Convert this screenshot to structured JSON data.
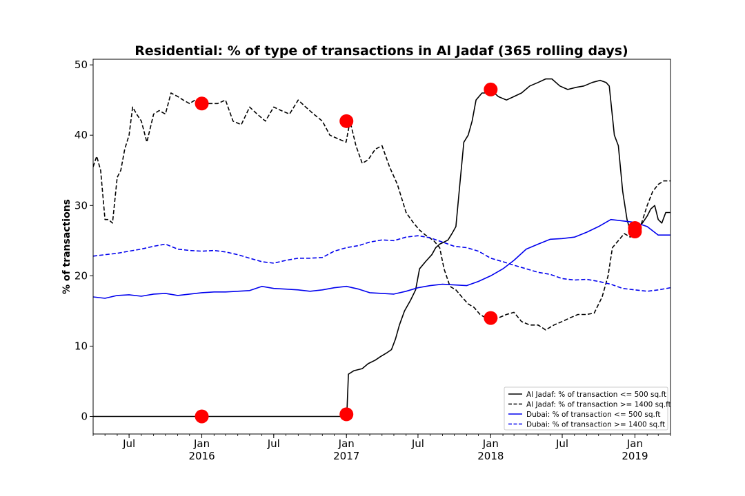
{
  "chart_data": {
    "type": "line",
    "title": "Residential: % of type of transactions in Al Jadaf (365 rolling days)",
    "xlabel": "",
    "ylabel": "% of transactions",
    "xlim": [
      "2015-04-01",
      "2019-04-01"
    ],
    "ylim": [
      -2.5,
      50.8
    ],
    "yticks": [
      0,
      10,
      20,
      30,
      40,
      50
    ],
    "xticks": [
      {
        "date": "2015-07-01",
        "label": "Jul",
        "year": ""
      },
      {
        "date": "2016-01-01",
        "label": "Jan",
        "year": "2016"
      },
      {
        "date": "2016-07-01",
        "label": "Jul",
        "year": ""
      },
      {
        "date": "2017-01-01",
        "label": "Jan",
        "year": "2017"
      },
      {
        "date": "2017-07-01",
        "label": "Jul",
        "year": ""
      },
      {
        "date": "2018-01-01",
        "label": "Jan",
        "year": "2018"
      },
      {
        "date": "2018-07-01",
        "label": "Jul",
        "year": ""
      },
      {
        "date": "2019-01-01",
        "label": "Jan",
        "year": "2019"
      }
    ],
    "grid": false,
    "legend_position": "lower-right",
    "series": [
      {
        "name": "Al Jadaf: % of transaction <= 500 sq.ft",
        "color": "#000000",
        "dash": "solid",
        "x": [
          "2015-04-01",
          "2016-01-01",
          "2016-07-01",
          "2016-12-31",
          "2017-01-02",
          "2017-01-06",
          "2017-01-20",
          "2017-02-10",
          "2017-02-25",
          "2017-03-15",
          "2017-03-28",
          "2017-04-12",
          "2017-04-25",
          "2017-05-05",
          "2017-05-15",
          "2017-05-28",
          "2017-06-12",
          "2017-06-25",
          "2017-07-05",
          "2017-07-20",
          "2017-08-05",
          "2017-08-15",
          "2017-08-25",
          "2017-09-05",
          "2017-09-15",
          "2017-09-25",
          "2017-10-05",
          "2017-10-15",
          "2017-10-25",
          "2017-11-05",
          "2017-11-15",
          "2017-11-25",
          "2017-12-10",
          "2017-12-20",
          "2018-01-01",
          "2018-01-20",
          "2018-02-10",
          "2018-03-01",
          "2018-03-20",
          "2018-04-10",
          "2018-05-01",
          "2018-05-20",
          "2018-06-05",
          "2018-06-25",
          "2018-07-15",
          "2018-08-05",
          "2018-08-25",
          "2018-09-15",
          "2018-10-05",
          "2018-10-20",
          "2018-10-28",
          "2018-11-10",
          "2018-11-20",
          "2018-12-01",
          "2018-12-12",
          "2018-12-22",
          "2019-01-01",
          "2019-01-10",
          "2019-01-20",
          "2019-02-01",
          "2019-02-10",
          "2019-02-20",
          "2019-03-01",
          "2019-03-10",
          "2019-03-20",
          "2019-04-01"
        ],
        "values": [
          0,
          0,
          0,
          0,
          0.3,
          6,
          6.5,
          6.8,
          7.5,
          8,
          8.5,
          9,
          9.5,
          11,
          13,
          15,
          16.5,
          18,
          21,
          22,
          23,
          24,
          24.5,
          24.8,
          25.1,
          26,
          27,
          33,
          39,
          40,
          42,
          45,
          46,
          46,
          46.5,
          45.5,
          45,
          45.5,
          46,
          47,
          47.5,
          48,
          48,
          47,
          46.5,
          46.8,
          47,
          47.5,
          47.8,
          47.5,
          47,
          40,
          38.5,
          32,
          28,
          26,
          25.5,
          27,
          27.5,
          28.5,
          29.5,
          30,
          28,
          27.5,
          29,
          29
        ]
      },
      {
        "name": "Al Jadaf: % of transaction >= 1400 sq.ft",
        "color": "#000000",
        "dash": "dashed",
        "x": [
          "2015-04-01",
          "2015-04-10",
          "2015-04-20",
          "2015-05-01",
          "2015-05-10",
          "2015-05-20",
          "2015-06-01",
          "2015-06-10",
          "2015-06-20",
          "2015-07-01",
          "2015-07-10",
          "2015-07-20",
          "2015-08-01",
          "2015-08-15",
          "2015-09-01",
          "2015-09-15",
          "2015-10-01",
          "2015-10-15",
          "2015-11-01",
          "2015-11-15",
          "2015-12-01",
          "2015-12-15",
          "2016-01-01",
          "2016-01-20",
          "2016-02-10",
          "2016-03-01",
          "2016-03-20",
          "2016-04-10",
          "2016-05-01",
          "2016-05-20",
          "2016-06-10",
          "2016-07-01",
          "2016-07-20",
          "2016-08-10",
          "2016-09-01",
          "2016-09-20",
          "2016-10-10",
          "2016-11-01",
          "2016-11-20",
          "2016-12-10",
          "2016-12-31",
          "2017-01-10",
          "2017-01-25",
          "2017-02-10",
          "2017-02-25",
          "2017-03-15",
          "2017-04-01",
          "2017-04-20",
          "2017-05-10",
          "2017-06-01",
          "2017-06-20",
          "2017-07-05",
          "2017-07-20",
          "2017-08-10",
          "2017-08-25",
          "2017-09-05",
          "2017-09-20",
          "2017-10-05",
          "2017-10-20",
          "2017-11-05",
          "2017-11-20",
          "2017-12-05",
          "2017-12-20",
          "2018-01-01",
          "2018-01-20",
          "2018-02-10",
          "2018-03-01",
          "2018-03-20",
          "2018-04-10",
          "2018-05-01",
          "2018-05-20",
          "2018-06-10",
          "2018-07-01",
          "2018-07-20",
          "2018-08-10",
          "2018-09-01",
          "2018-09-20",
          "2018-10-10",
          "2018-10-25",
          "2018-11-05",
          "2018-11-20",
          "2018-12-05",
          "2018-12-20",
          "2019-01-01",
          "2019-01-15",
          "2019-02-01",
          "2019-02-15",
          "2019-03-01",
          "2019-03-15",
          "2019-04-01"
        ],
        "values": [
          35.5,
          37,
          35,
          28,
          28,
          27.5,
          34,
          35,
          38,
          40,
          44,
          43,
          42,
          39,
          43,
          43.5,
          43,
          46,
          45.5,
          45,
          44.5,
          45,
          44.5,
          44.5,
          44.5,
          45,
          42,
          41.5,
          44,
          43,
          42,
          44,
          43.5,
          43,
          45,
          44,
          43,
          42,
          40,
          39.5,
          39,
          42,
          38.5,
          36,
          36.5,
          38,
          38.5,
          35.5,
          33,
          29,
          27.5,
          26.5,
          25.8,
          25,
          24,
          21,
          18.5,
          18,
          17,
          16,
          15.5,
          14.5,
          14,
          13.8,
          14,
          14.5,
          14.8,
          13.5,
          13,
          13,
          12.3,
          13,
          13.5,
          14,
          14.5,
          14.5,
          14.7,
          17,
          20,
          24,
          25,
          26,
          25.5,
          26.5,
          27,
          30,
          32,
          33,
          33.5,
          33.5
        ]
      },
      {
        "name": "Dubai: % of transaction <= 500 sq.ft",
        "color": "#0000ee",
        "dash": "solid",
        "x": [
          "2015-04-01",
          "2015-05-01",
          "2015-06-01",
          "2015-07-01",
          "2015-08-01",
          "2015-09-01",
          "2015-10-01",
          "2015-11-01",
          "2015-12-01",
          "2016-01-01",
          "2016-02-01",
          "2016-03-01",
          "2016-04-01",
          "2016-05-01",
          "2016-06-01",
          "2016-07-01",
          "2016-08-01",
          "2016-09-01",
          "2016-10-01",
          "2016-11-01",
          "2016-12-01",
          "2017-01-01",
          "2017-02-01",
          "2017-03-01",
          "2017-04-01",
          "2017-05-01",
          "2017-06-01",
          "2017-07-01",
          "2017-08-01",
          "2017-09-01",
          "2017-10-01",
          "2017-11-01",
          "2017-12-01",
          "2018-01-01",
          "2018-02-01",
          "2018-03-01",
          "2018-04-01",
          "2018-05-01",
          "2018-06-01",
          "2018-07-01",
          "2018-08-01",
          "2018-09-01",
          "2018-10-01",
          "2018-11-01",
          "2018-12-01",
          "2019-01-01",
          "2019-02-01",
          "2019-03-01",
          "2019-04-01"
        ],
        "values": [
          17,
          16.8,
          17.2,
          17.3,
          17.1,
          17.4,
          17.5,
          17.2,
          17.4,
          17.6,
          17.7,
          17.7,
          17.8,
          17.9,
          18.5,
          18.2,
          18.1,
          18,
          17.8,
          18,
          18.3,
          18.5,
          18.1,
          17.6,
          17.5,
          17.4,
          17.8,
          18.3,
          18.6,
          18.8,
          18.7,
          18.6,
          19.2,
          20,
          21,
          22.2,
          23.8,
          24.5,
          25.2,
          25.3,
          25.5,
          26.2,
          27,
          28,
          27.8,
          27.6,
          27,
          25.8,
          25.8
        ]
      },
      {
        "name": "Dubai: % of transaction >= 1400 sq.ft",
        "color": "#0000ee",
        "dash": "dashed",
        "x": [
          "2015-04-01",
          "2015-05-01",
          "2015-06-01",
          "2015-07-01",
          "2015-08-01",
          "2015-09-01",
          "2015-10-01",
          "2015-11-01",
          "2015-12-01",
          "2016-01-01",
          "2016-02-01",
          "2016-03-01",
          "2016-04-01",
          "2016-05-01",
          "2016-06-01",
          "2016-07-01",
          "2016-08-01",
          "2016-09-01",
          "2016-10-01",
          "2016-11-01",
          "2016-12-01",
          "2017-01-01",
          "2017-02-01",
          "2017-03-01",
          "2017-04-01",
          "2017-05-01",
          "2017-06-01",
          "2017-07-01",
          "2017-08-01",
          "2017-09-01",
          "2017-10-01",
          "2017-11-01",
          "2017-12-01",
          "2018-01-01",
          "2018-02-01",
          "2018-03-01",
          "2018-04-01",
          "2018-05-01",
          "2018-06-01",
          "2018-07-01",
          "2018-08-01",
          "2018-09-01",
          "2018-10-01",
          "2018-11-01",
          "2018-12-01",
          "2019-01-01",
          "2019-02-01",
          "2019-03-01",
          "2019-04-01"
        ],
        "values": [
          22.8,
          23,
          23.2,
          23.5,
          23.8,
          24.2,
          24.5,
          23.8,
          23.6,
          23.5,
          23.6,
          23.4,
          23,
          22.5,
          22,
          21.8,
          22.2,
          22.5,
          22.5,
          22.6,
          23.5,
          24,
          24.3,
          24.8,
          25.1,
          25,
          25.5,
          25.7,
          25.4,
          24.8,
          24.2,
          24,
          23.5,
          22.5,
          22,
          21.5,
          21,
          20.5,
          20.2,
          19.6,
          19.4,
          19.5,
          19.2,
          18.8,
          18.2,
          18,
          17.8,
          18,
          18.3
        ]
      }
    ],
    "markers": {
      "color": "#ff0000",
      "points": [
        {
          "x": "2016-01-01",
          "y": 0
        },
        {
          "x": "2016-01-01",
          "y": 44.5
        },
        {
          "x": "2017-01-01",
          "y": 0.3
        },
        {
          "x": "2017-01-01",
          "y": 42
        },
        {
          "x": "2018-01-01",
          "y": 46.5
        },
        {
          "x": "2018-01-01",
          "y": 14
        },
        {
          "x": "2019-01-01",
          "y": 26.8
        },
        {
          "x": "2019-01-01",
          "y": 26.3
        }
      ]
    }
  }
}
